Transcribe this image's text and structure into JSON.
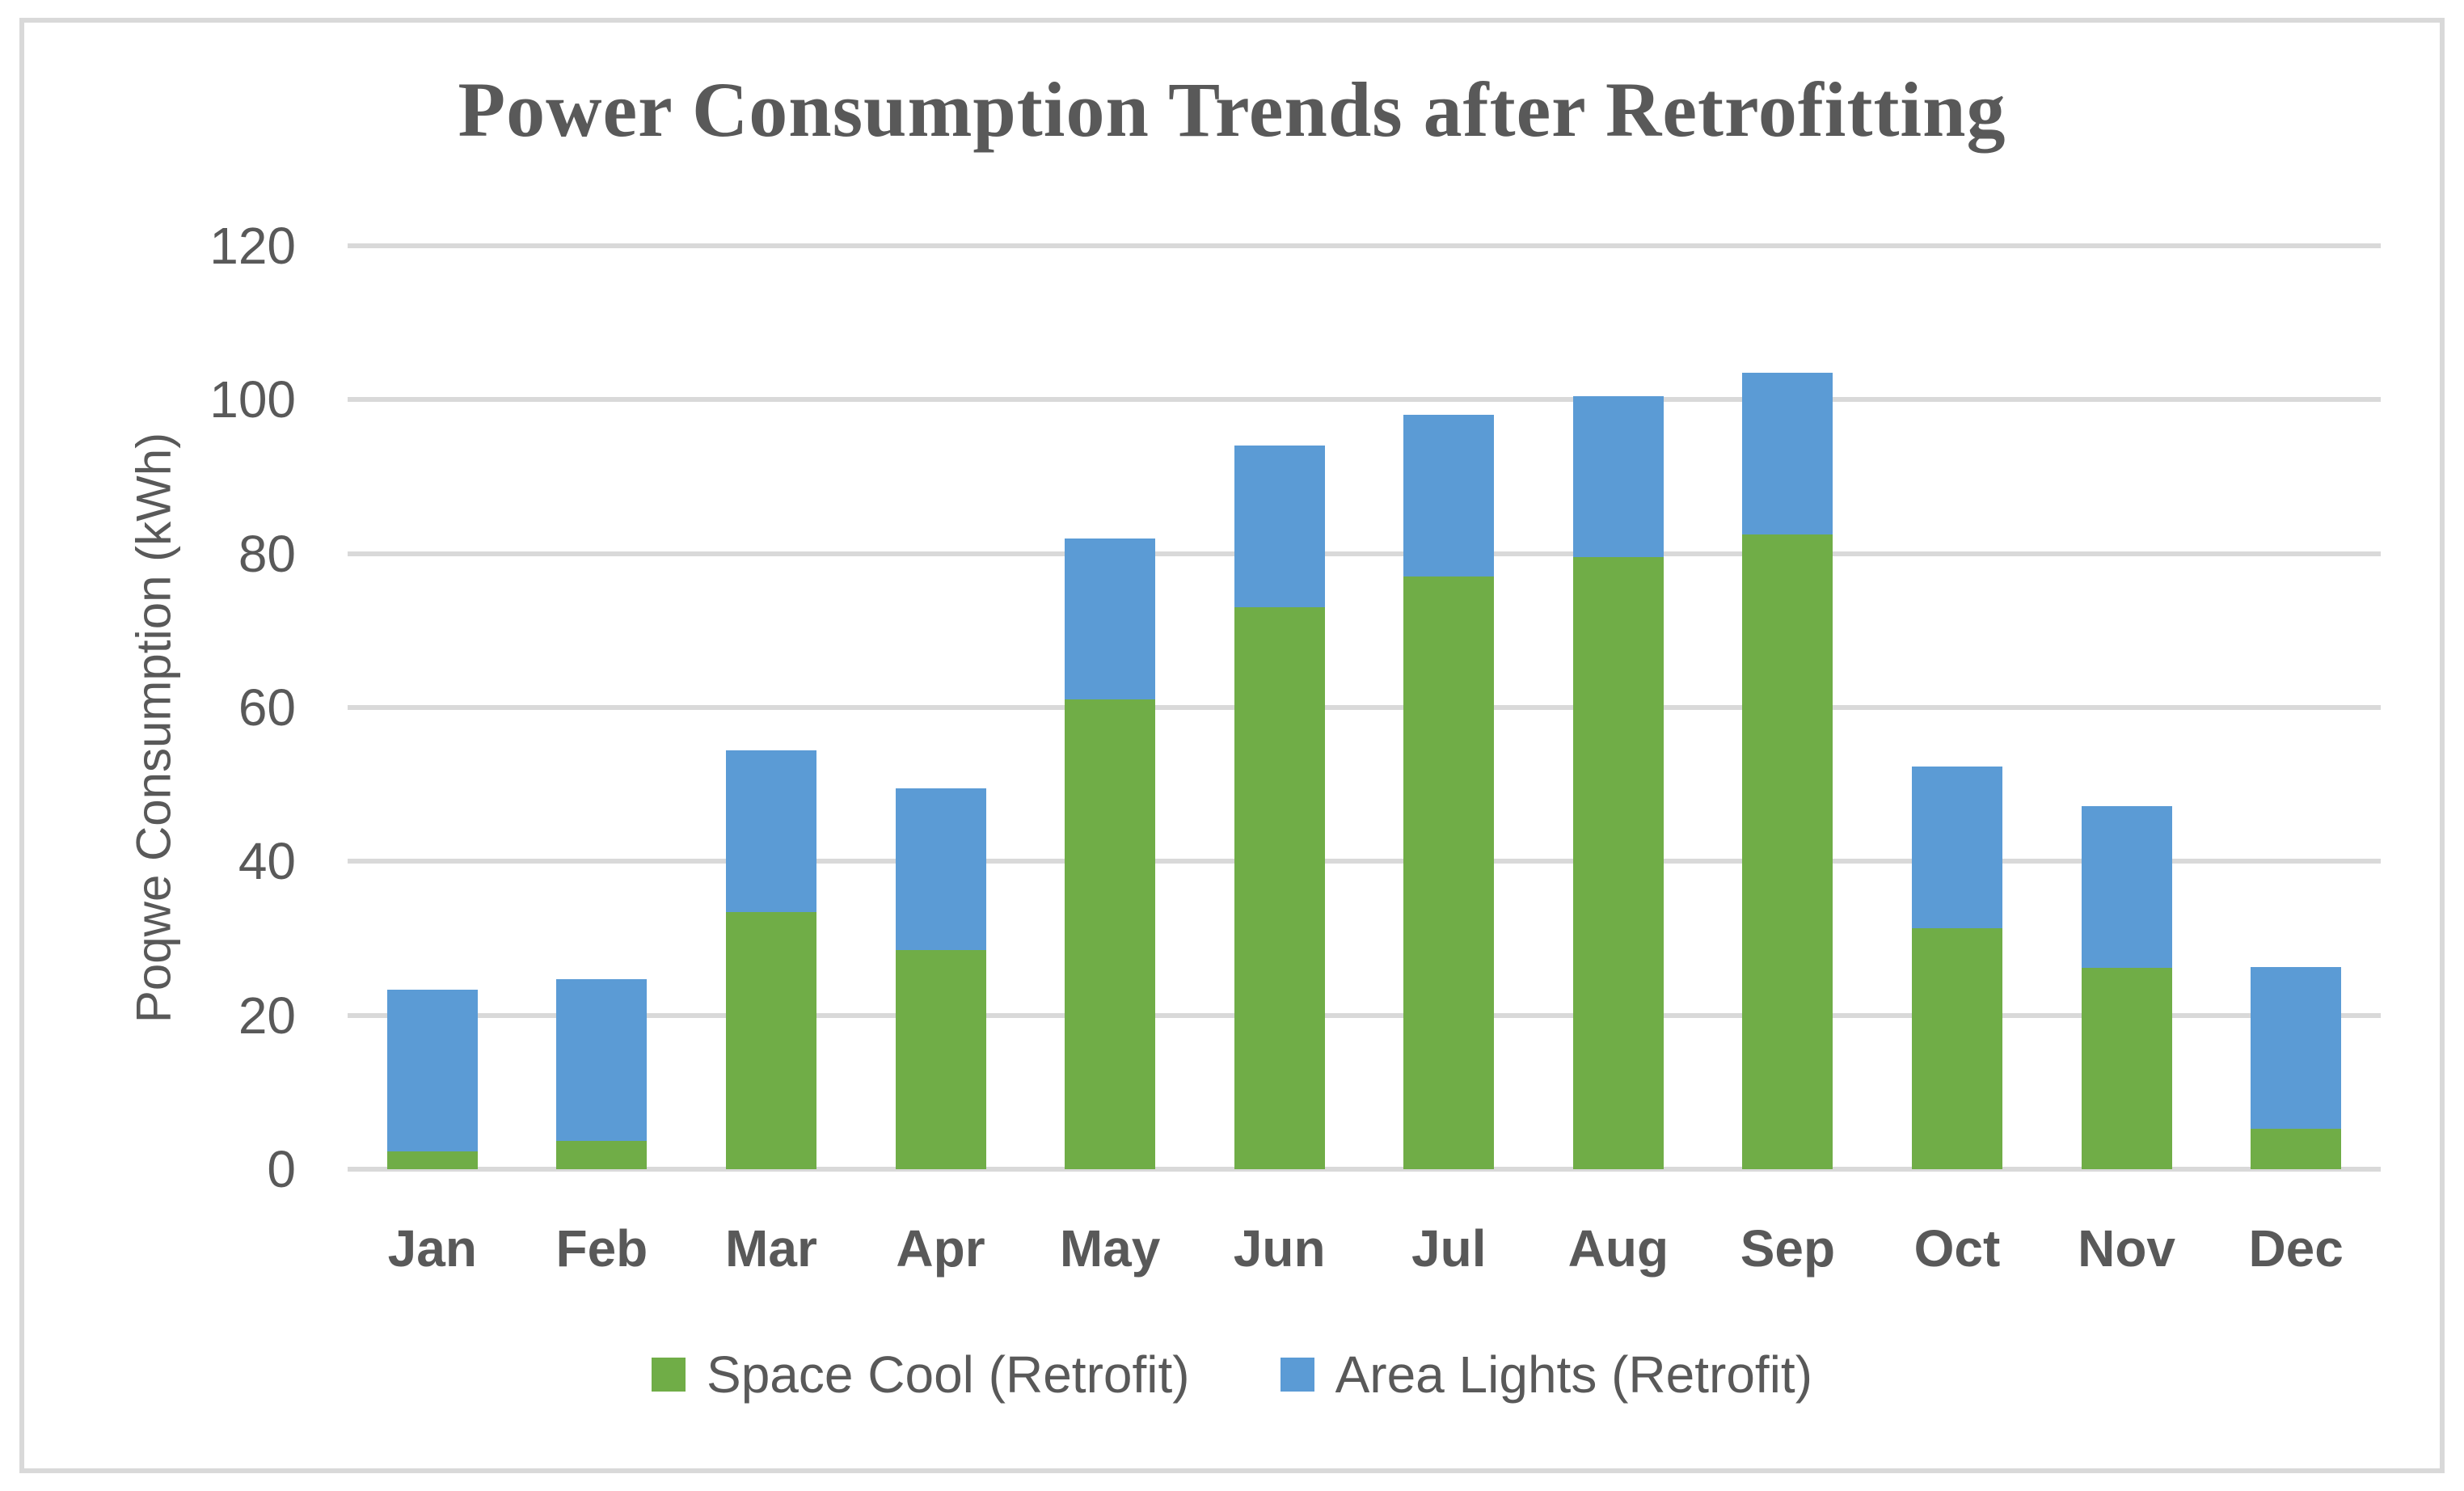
{
  "page": {
    "background": "#FFFFFF",
    "frame_border_color": "#D9D9D9"
  },
  "chart_data": {
    "type": "bar",
    "stacked": true,
    "title": "Power Consumption Trends after Retrofitting",
    "ylabel": "Poqwe Consumption (kWh)",
    "xlabel": "",
    "categories": [
      "Jan",
      "Feb",
      "Mar",
      "Apr",
      "May",
      "Jun",
      "Jul",
      "Aug",
      "Sep",
      "Oct",
      "Nov",
      "Dec"
    ],
    "series": [
      {
        "name": "Space Cool (Retrofit)",
        "color": "#70AD47",
        "values": [
          2.3,
          3.7,
          33.4,
          28.5,
          61,
          73,
          77,
          79.5,
          82.5,
          31.3,
          26.2,
          5.3
        ]
      },
      {
        "name": "Area Lights (Retrofit)",
        "color": "#5B9BD5",
        "values": [
          21,
          21,
          21,
          21,
          21,
          21,
          21,
          21,
          21,
          21,
          21,
          21
        ]
      }
    ],
    "ylim": [
      0,
      120
    ],
    "yticks": [
      0,
      20,
      40,
      60,
      80,
      100,
      120
    ],
    "grid": "horizontal",
    "gridline_color": "#D9D9D9",
    "legend_position": "bottom",
    "text_color": "#595959",
    "title_color": "#595959"
  }
}
